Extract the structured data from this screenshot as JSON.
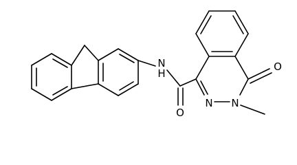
{
  "atoms": {
    "amide_n": "N",
    "amide_h": "H",
    "amide_o": "O",
    "ring_n1": "N",
    "ring_n2": "N",
    "ketone_o": "O"
  }
}
